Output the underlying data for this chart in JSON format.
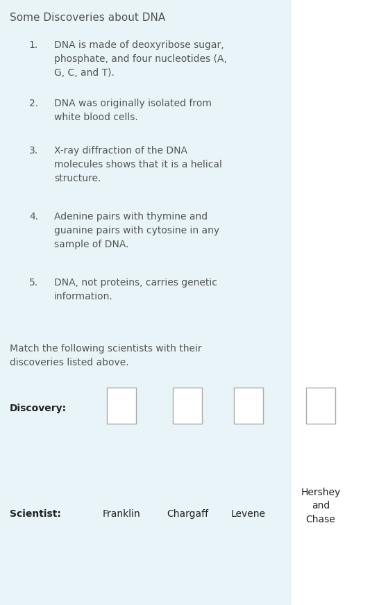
{
  "title": "Some Discoveries about DNA",
  "title_fontsize": 11,
  "body_fontsize": 10,
  "label_fontsize": 10,
  "bg_color": "#e8f4f7",
  "white_color": "#ffffff",
  "text_color": "#555555",
  "dark_text": "#222222",
  "discoveries": [
    "DNA is made of deoxyribose sugar,\nphosphate, and four nucleotides (A,\nG, C, and T).",
    "DNA was originally isolated from\nwhite blood cells.",
    "X-ray diffraction of the DNA\nmolecules shows that it is a helical\nstructure.",
    "Adenine pairs with thymine and\nguanine pairs with cytosine in any\nsample of DNA.",
    "DNA, not proteins, carries genetic\ninformation."
  ],
  "match_text": "Match the following scientists with their\ndiscoveries listed above.",
  "discovery_label": "Discovery:",
  "scientist_label": "Scientist:",
  "scientists": [
    "Franklin",
    "Chargaff",
    "Levene",
    "Hershey\nand\nChase"
  ],
  "figsize": [
    5.46,
    8.71
  ],
  "dpi": 100
}
